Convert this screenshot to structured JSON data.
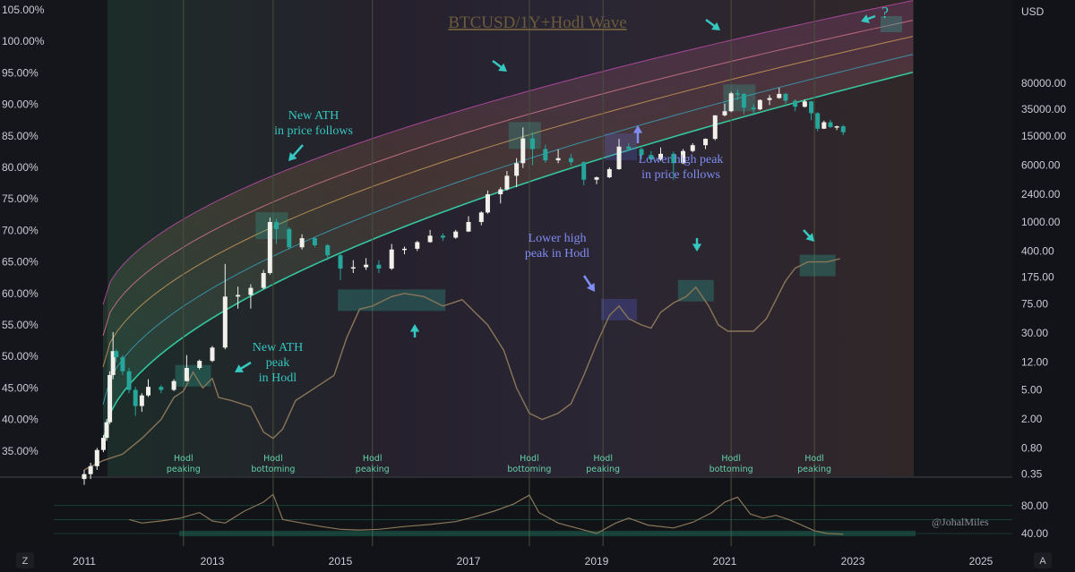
{
  "chart_data": {
    "type": "candlestick",
    "title": "BTCUSD/1Y+Hodl Wave",
    "currency_label": "USD",
    "left_axis_ticks": [
      "105.00%",
      "100.00%",
      "95.00%",
      "90.00%",
      "85.00%",
      "80.00%",
      "75.00%",
      "70.00%",
      "65.00%",
      "60.00%",
      "55.00%",
      "50.00%",
      "45.00%",
      "40.00%",
      "35.00%"
    ],
    "right_axis_ticks": [
      "80000.00",
      "35000.00",
      "15000.00",
      "6000.00",
      "2400.00",
      "1000.00",
      "400.00",
      "175.00",
      "75.00",
      "30.00",
      "12.00",
      "5.00",
      "2.00",
      "0.80",
      "0.35"
    ],
    "x_axis_ticks": [
      "2011",
      "2013",
      "2015",
      "2017",
      "2019",
      "2021",
      "2023",
      "2025"
    ],
    "hodl_axis_ticks": [
      "80.00",
      "40.00"
    ],
    "price_scale": "log",
    "price_series": [
      {
        "t": 2011.0,
        "o": 0.3,
        "h": 0.4,
        "l": 0.25,
        "c": 0.35
      },
      {
        "t": 2011.1,
        "o": 0.35,
        "h": 0.5,
        "l": 0.3,
        "c": 0.45
      },
      {
        "t": 2011.2,
        "o": 0.45,
        "h": 0.8,
        "l": 0.4,
        "c": 0.75
      },
      {
        "t": 2011.3,
        "o": 0.75,
        "h": 1.2,
        "l": 0.7,
        "c": 1.1
      },
      {
        "t": 2011.35,
        "o": 1.1,
        "h": 2.0,
        "l": 1.0,
        "c": 1.8
      },
      {
        "t": 2011.4,
        "o": 1.8,
        "h": 9.0,
        "l": 1.7,
        "c": 8.0
      },
      {
        "t": 2011.45,
        "o": 8.0,
        "h": 31.0,
        "l": 7.0,
        "c": 17.0
      },
      {
        "t": 2011.5,
        "o": 17.0,
        "h": 18.0,
        "l": 12.0,
        "c": 14.0
      },
      {
        "t": 2011.6,
        "o": 14.0,
        "h": 15.0,
        "l": 8.0,
        "c": 9.0
      },
      {
        "t": 2011.7,
        "o": 9.0,
        "h": 10.0,
        "l": 4.5,
        "c": 5.0
      },
      {
        "t": 2011.8,
        "o": 5.0,
        "h": 5.5,
        "l": 2.2,
        "c": 3.0
      },
      {
        "t": 2011.9,
        "o": 3.0,
        "h": 4.5,
        "l": 2.5,
        "c": 4.2
      },
      {
        "t": 2012.0,
        "o": 4.2,
        "h": 7.0,
        "l": 4.0,
        "c": 5.5
      },
      {
        "t": 2012.2,
        "o": 5.5,
        "h": 5.8,
        "l": 4.5,
        "c": 5.0
      },
      {
        "t": 2012.4,
        "o": 5.0,
        "h": 7.0,
        "l": 4.8,
        "c": 6.6
      },
      {
        "t": 2012.6,
        "o": 6.6,
        "h": 15.0,
        "l": 6.5,
        "c": 10.0
      },
      {
        "t": 2012.8,
        "o": 10.0,
        "h": 13.0,
        "l": 9.5,
        "c": 12.5
      },
      {
        "t": 2013.0,
        "o": 12.5,
        "h": 20.0,
        "l": 12.0,
        "c": 19.0
      },
      {
        "t": 2013.2,
        "o": 19.0,
        "h": 266.0,
        "l": 18.0,
        "c": 95.0
      },
      {
        "t": 2013.4,
        "o": 95.0,
        "h": 130.0,
        "l": 65.0,
        "c": 100.0
      },
      {
        "t": 2013.6,
        "o": 100.0,
        "h": 140.0,
        "l": 65.0,
        "c": 125.0
      },
      {
        "t": 2013.8,
        "o": 125.0,
        "h": 220.0,
        "l": 120.0,
        "c": 200.0
      },
      {
        "t": 2013.9,
        "o": 200.0,
        "h": 1150.0,
        "l": 190.0,
        "c": 1000.0
      },
      {
        "t": 2014.0,
        "o": 1000.0,
        "h": 1100.0,
        "l": 500.0,
        "c": 800.0
      },
      {
        "t": 2014.2,
        "o": 800.0,
        "h": 850.0,
        "l": 420.0,
        "c": 450.0
      },
      {
        "t": 2014.4,
        "o": 450.0,
        "h": 680.0,
        "l": 420.0,
        "c": 600.0
      },
      {
        "t": 2014.6,
        "o": 600.0,
        "h": 630.0,
        "l": 450.0,
        "c": 480.0
      },
      {
        "t": 2014.8,
        "o": 480.0,
        "h": 500.0,
        "l": 300.0,
        "c": 350.0
      },
      {
        "t": 2015.0,
        "o": 350.0,
        "h": 380.0,
        "l": 160.0,
        "c": 230.0
      },
      {
        "t": 2015.2,
        "o": 230.0,
        "h": 300.0,
        "l": 200.0,
        "c": 240.0
      },
      {
        "t": 2015.4,
        "o": 240.0,
        "h": 320.0,
        "l": 220.0,
        "c": 260.0
      },
      {
        "t": 2015.6,
        "o": 260.0,
        "h": 300.0,
        "l": 200.0,
        "c": 230.0
      },
      {
        "t": 2015.8,
        "o": 230.0,
        "h": 500.0,
        "l": 220.0,
        "c": 420.0
      },
      {
        "t": 2016.0,
        "o": 420.0,
        "h": 460.0,
        "l": 360.0,
        "c": 430.0
      },
      {
        "t": 2016.2,
        "o": 430.0,
        "h": 550.0,
        "l": 400.0,
        "c": 530.0
      },
      {
        "t": 2016.4,
        "o": 530.0,
        "h": 780.0,
        "l": 520.0,
        "c": 650.0
      },
      {
        "t": 2016.6,
        "o": 650.0,
        "h": 700.0,
        "l": 550.0,
        "c": 610.0
      },
      {
        "t": 2016.8,
        "o": 610.0,
        "h": 780.0,
        "l": 590.0,
        "c": 740.0
      },
      {
        "t": 2017.0,
        "o": 740.0,
        "h": 1200.0,
        "l": 730.0,
        "c": 1000.0
      },
      {
        "t": 2017.2,
        "o": 1000.0,
        "h": 1400.0,
        "l": 900.0,
        "c": 1350.0
      },
      {
        "t": 2017.3,
        "o": 1350.0,
        "h": 2700.0,
        "l": 1300.0,
        "c": 2400.0
      },
      {
        "t": 2017.5,
        "o": 2400.0,
        "h": 3000.0,
        "l": 1800.0,
        "c": 2800.0
      },
      {
        "t": 2017.6,
        "o": 2800.0,
        "h": 5000.0,
        "l": 2700.0,
        "c": 4300.0
      },
      {
        "t": 2017.75,
        "o": 4300.0,
        "h": 7500.0,
        "l": 3000.0,
        "c": 6400.0
      },
      {
        "t": 2017.85,
        "o": 6400.0,
        "h": 19800.0,
        "l": 5500.0,
        "c": 14000.0
      },
      {
        "t": 2018.0,
        "o": 14000.0,
        "h": 17000.0,
        "l": 6000.0,
        "c": 10000.0
      },
      {
        "t": 2018.2,
        "o": 10000.0,
        "h": 11500.0,
        "l": 6500.0,
        "c": 7000.0
      },
      {
        "t": 2018.4,
        "o": 7000.0,
        "h": 9900.0,
        "l": 6400.0,
        "c": 7500.0
      },
      {
        "t": 2018.6,
        "o": 7500.0,
        "h": 8500.0,
        "l": 5900.0,
        "c": 6600.0
      },
      {
        "t": 2018.8,
        "o": 6600.0,
        "h": 6800.0,
        "l": 3200.0,
        "c": 3800.0
      },
      {
        "t": 2019.0,
        "o": 3800.0,
        "h": 4200.0,
        "l": 3300.0,
        "c": 4100.0
      },
      {
        "t": 2019.2,
        "o": 4100.0,
        "h": 5600.0,
        "l": 4000.0,
        "c": 5300.0
      },
      {
        "t": 2019.35,
        "o": 5300.0,
        "h": 13800.0,
        "l": 5200.0,
        "c": 10800.0
      },
      {
        "t": 2019.5,
        "o": 10800.0,
        "h": 12000.0,
        "l": 9400.0,
        "c": 10000.0
      },
      {
        "t": 2019.7,
        "o": 10000.0,
        "h": 10500.0,
        "l": 7300.0,
        "c": 8300.0
      },
      {
        "t": 2019.85,
        "o": 8300.0,
        "h": 9400.0,
        "l": 6500.0,
        "c": 7200.0
      },
      {
        "t": 2020.0,
        "o": 7200.0,
        "h": 10500.0,
        "l": 6900.0,
        "c": 8600.0
      },
      {
        "t": 2020.2,
        "o": 8600.0,
        "h": 9200.0,
        "l": 3800.0,
        "c": 6400.0
      },
      {
        "t": 2020.35,
        "o": 6400.0,
        "h": 10000.0,
        "l": 6200.0,
        "c": 9400.0
      },
      {
        "t": 2020.5,
        "o": 9400.0,
        "h": 12000.0,
        "l": 9000.0,
        "c": 11300.0
      },
      {
        "t": 2020.7,
        "o": 11300.0,
        "h": 14000.0,
        "l": 10000.0,
        "c": 13800.0
      },
      {
        "t": 2020.85,
        "o": 13800.0,
        "h": 29000.0,
        "l": 13200.0,
        "c": 29000.0
      },
      {
        "t": 2021.0,
        "o": 29000.0,
        "h": 42000.0,
        "l": 28000.0,
        "c": 33000.0
      },
      {
        "t": 2021.1,
        "o": 33000.0,
        "h": 61000.0,
        "l": 32000.0,
        "c": 58000.0
      },
      {
        "t": 2021.2,
        "o": 58000.0,
        "h": 65000.0,
        "l": 47000.0,
        "c": 57000.0
      },
      {
        "t": 2021.3,
        "o": 57000.0,
        "h": 59000.0,
        "l": 30000.0,
        "c": 37000.0
      },
      {
        "t": 2021.45,
        "o": 37000.0,
        "h": 41000.0,
        "l": 29000.0,
        "c": 35000.0
      },
      {
        "t": 2021.55,
        "o": 35000.0,
        "h": 48000.0,
        "l": 34000.0,
        "c": 47000.0
      },
      {
        "t": 2021.7,
        "o": 47000.0,
        "h": 55000.0,
        "l": 40000.0,
        "c": 50000.0
      },
      {
        "t": 2021.85,
        "o": 50000.0,
        "h": 69000.0,
        "l": 49000.0,
        "c": 57000.0
      },
      {
        "t": 2021.95,
        "o": 57000.0,
        "h": 59000.0,
        "l": 42000.0,
        "c": 46000.0
      },
      {
        "t": 2022.1,
        "o": 46000.0,
        "h": 48000.0,
        "l": 33000.0,
        "c": 38000.0
      },
      {
        "t": 2022.25,
        "o": 38000.0,
        "h": 48000.0,
        "l": 37000.0,
        "c": 45000.0
      },
      {
        "t": 2022.35,
        "o": 45000.0,
        "h": 46000.0,
        "l": 25000.0,
        "c": 31000.0
      },
      {
        "t": 2022.45,
        "o": 31000.0,
        "h": 32000.0,
        "l": 17500.0,
        "c": 19000.0
      },
      {
        "t": 2022.55,
        "o": 19000.0,
        "h": 24500.0,
        "l": 18800.0,
        "c": 23300.0
      },
      {
        "t": 2022.65,
        "o": 23300.0,
        "h": 25000.0,
        "l": 19500.0,
        "c": 20000.0
      },
      {
        "t": 2022.75,
        "o": 20000.0,
        "h": 21000.0,
        "l": 18200.0,
        "c": 20500.0
      },
      {
        "t": 2022.85,
        "o": 20500.0,
        "h": 21400.0,
        "l": 15500.0,
        "c": 17000.0
      }
    ],
    "hodl_wave_percent": [
      {
        "t": 2011.0,
        "v": 32.0
      },
      {
        "t": 2011.3,
        "v": 33.5
      },
      {
        "t": 2011.6,
        "v": 34.5
      },
      {
        "t": 2011.9,
        "v": 37.0
      },
      {
        "t": 2012.2,
        "v": 40.0
      },
      {
        "t": 2012.4,
        "v": 43.5
      },
      {
        "t": 2012.55,
        "v": 44.5
      },
      {
        "t": 2012.7,
        "v": 47.5
      },
      {
        "t": 2012.85,
        "v": 45.0
      },
      {
        "t": 2013.0,
        "v": 46.5
      },
      {
        "t": 2013.1,
        "v": 43.5
      },
      {
        "t": 2013.3,
        "v": 43.0
      },
      {
        "t": 2013.6,
        "v": 42.0
      },
      {
        "t": 2013.8,
        "v": 38.0
      },
      {
        "t": 2013.95,
        "v": 37.0
      },
      {
        "t": 2014.1,
        "v": 38.5
      },
      {
        "t": 2014.3,
        "v": 43.0
      },
      {
        "t": 2014.6,
        "v": 45.0
      },
      {
        "t": 2014.9,
        "v": 47.0
      },
      {
        "t": 2015.1,
        "v": 53.0
      },
      {
        "t": 2015.3,
        "v": 57.5
      },
      {
        "t": 2015.5,
        "v": 58.0
      },
      {
        "t": 2015.8,
        "v": 59.5
      },
      {
        "t": 2016.0,
        "v": 60.0
      },
      {
        "t": 2016.3,
        "v": 59.5
      },
      {
        "t": 2016.6,
        "v": 58.0
      },
      {
        "t": 2016.9,
        "v": 59.0
      },
      {
        "t": 2017.1,
        "v": 57.0
      },
      {
        "t": 2017.3,
        "v": 55.0
      },
      {
        "t": 2017.55,
        "v": 51.0
      },
      {
        "t": 2017.75,
        "v": 45.0
      },
      {
        "t": 2017.95,
        "v": 41.0
      },
      {
        "t": 2018.15,
        "v": 40.0
      },
      {
        "t": 2018.4,
        "v": 41.0
      },
      {
        "t": 2018.6,
        "v": 42.5
      },
      {
        "t": 2018.8,
        "v": 47.0
      },
      {
        "t": 2019.0,
        "v": 52.0
      },
      {
        "t": 2019.2,
        "v": 56.5
      },
      {
        "t": 2019.35,
        "v": 58.0
      },
      {
        "t": 2019.5,
        "v": 56.0
      },
      {
        "t": 2019.7,
        "v": 55.0
      },
      {
        "t": 2019.85,
        "v": 54.5
      },
      {
        "t": 2020.0,
        "v": 57.0
      },
      {
        "t": 2020.2,
        "v": 58.5
      },
      {
        "t": 2020.4,
        "v": 59.5
      },
      {
        "t": 2020.55,
        "v": 61.0
      },
      {
        "t": 2020.75,
        "v": 58.0
      },
      {
        "t": 2020.9,
        "v": 55.0
      },
      {
        "t": 2021.05,
        "v": 54.0
      },
      {
        "t": 2021.25,
        "v": 54.0
      },
      {
        "t": 2021.45,
        "v": 54.0
      },
      {
        "t": 2021.65,
        "v": 56.0
      },
      {
        "t": 2021.8,
        "v": 59.0
      },
      {
        "t": 2021.95,
        "v": 62.0
      },
      {
        "t": 2022.1,
        "v": 64.0
      },
      {
        "t": 2022.3,
        "v": 65.0
      },
      {
        "t": 2022.6,
        "v": 65.0
      },
      {
        "t": 2022.8,
        "v": 65.5
      }
    ],
    "hodl_oscillator": [
      {
        "t": 2011.7,
        "v": 60
      },
      {
        "t": 2011.9,
        "v": 55
      },
      {
        "t": 2012.2,
        "v": 58
      },
      {
        "t": 2012.5,
        "v": 62
      },
      {
        "t": 2012.8,
        "v": 70
      },
      {
        "t": 2013.0,
        "v": 58
      },
      {
        "t": 2013.2,
        "v": 55
      },
      {
        "t": 2013.5,
        "v": 72
      },
      {
        "t": 2013.8,
        "v": 85
      },
      {
        "t": 2013.95,
        "v": 96
      },
      {
        "t": 2014.1,
        "v": 60
      },
      {
        "t": 2014.4,
        "v": 55
      },
      {
        "t": 2014.7,
        "v": 50
      },
      {
        "t": 2015.0,
        "v": 46
      },
      {
        "t": 2015.3,
        "v": 45
      },
      {
        "t": 2015.6,
        "v": 46
      },
      {
        "t": 2016.0,
        "v": 50
      },
      {
        "t": 2016.4,
        "v": 53
      },
      {
        "t": 2016.8,
        "v": 57
      },
      {
        "t": 2017.1,
        "v": 64
      },
      {
        "t": 2017.4,
        "v": 72
      },
      {
        "t": 2017.7,
        "v": 82
      },
      {
        "t": 2017.95,
        "v": 95
      },
      {
        "t": 2018.1,
        "v": 70
      },
      {
        "t": 2018.4,
        "v": 55
      },
      {
        "t": 2018.8,
        "v": 45
      },
      {
        "t": 2019.0,
        "v": 40
      },
      {
        "t": 2019.3,
        "v": 55
      },
      {
        "t": 2019.5,
        "v": 62
      },
      {
        "t": 2019.8,
        "v": 52
      },
      {
        "t": 2020.2,
        "v": 48
      },
      {
        "t": 2020.5,
        "v": 56
      },
      {
        "t": 2020.8,
        "v": 70
      },
      {
        "t": 2021.0,
        "v": 85
      },
      {
        "t": 2021.2,
        "v": 92
      },
      {
        "t": 2021.4,
        "v": 68
      },
      {
        "t": 2021.6,
        "v": 62
      },
      {
        "t": 2021.8,
        "v": 66
      },
      {
        "t": 2022.0,
        "v": 60
      },
      {
        "t": 2022.2,
        "v": 52
      },
      {
        "t": 2022.4,
        "v": 44
      },
      {
        "t": 2022.6,
        "v": 40
      },
      {
        "t": 2022.85,
        "v": 39
      }
    ],
    "cycle_lines": [
      2012.55,
      2013.95,
      2015.5,
      2017.95,
      2019.1,
      2021.1,
      2022.4
    ],
    "era_labels": [
      {
        "t": 2012.55,
        "line1": "Hodl",
        "line2": "peaking"
      },
      {
        "t": 2013.95,
        "line1": "Hodl",
        "line2": "bottoming"
      },
      {
        "t": 2015.5,
        "line1": "Hodl",
        "line2": "peaking"
      },
      {
        "t": 2017.95,
        "line1": "Hodl",
        "line2": "bottoming"
      },
      {
        "t": 2019.1,
        "line1": "Hodl",
        "line2": "peaking"
      },
      {
        "t": 2021.1,
        "line1": "Hodl",
        "line2": "bottoming"
      },
      {
        "t": 2022.4,
        "line1": "Hodl",
        "line2": "peaking"
      }
    ],
    "annotations": [
      {
        "t": 2013.6,
        "lines": [
          "New ATH",
          "in price follows"
        ],
        "style": "cyan"
      },
      {
        "t": 2013.5,
        "lines": [
          "New ATH",
          "peak",
          "in Hodl"
        ],
        "style": "cyan"
      },
      {
        "t": 2018.9,
        "lines": [
          "Lower high",
          "peak in Hodl"
        ],
        "style": "blue"
      },
      {
        "t": 2020.9,
        "lines": [
          "Lower high peak",
          "in price follows"
        ],
        "style": "blue"
      },
      {
        "t": 2023.6,
        "lines": [
          "?"
        ],
        "style": "cyan"
      }
    ],
    "watermark": "@JohalMiles",
    "corner_left": "Z",
    "corner_right": "A",
    "colors": {
      "up": "#f1f0ea",
      "down": "#26a69a",
      "hodl_line": "#8a7659",
      "band_top": "#b84ca7",
      "band_bottom": "#36e0b2",
      "background": "#0f1014",
      "annotation_cyan": "#35c7c0",
      "annotation_blue": "#7f8cf2"
    }
  }
}
